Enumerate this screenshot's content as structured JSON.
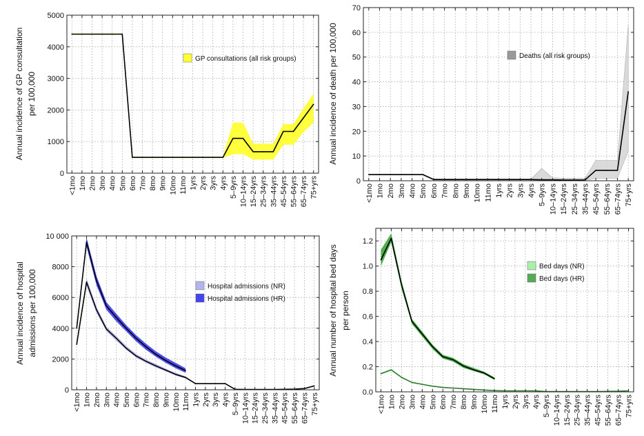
{
  "chart_data": [
    {
      "type": "line",
      "id": "gp",
      "ylabel_lines": [
        "Annual incidence of GP consultation",
        "per 100,000"
      ],
      "ylim": [
        0,
        5000
      ],
      "yticks": [
        0,
        1000,
        2000,
        3000,
        4000,
        5000
      ],
      "ytick_labels": [
        "0",
        "1000",
        "2000",
        "3000",
        "4000",
        "5000"
      ],
      "categories": [
        "<1mo",
        "1mo",
        "2mo",
        "3mo",
        "4mo",
        "5mo",
        "6mo",
        "7mo",
        "8mo",
        "9mo",
        "10mo",
        "11mo",
        "1yrs",
        "2yrs",
        "3yrs",
        "4yrs",
        "5–9yrs",
        "10–14yrs",
        "15–24yrs",
        "25–34yrs",
        "35–44yrs",
        "45–54yrs",
        "55–64yrs",
        "65–74yrs",
        "75+yrs"
      ],
      "grid": true,
      "legend_position": "top-right",
      "series": [
        {
          "name": "GP consultations (all risk groups)",
          "fill": "#ffff33",
          "line": "#000000",
          "mean": [
            4400,
            4400,
            4400,
            4400,
            4400,
            4400,
            500,
            500,
            500,
            500,
            500,
            500,
            500,
            500,
            500,
            500,
            1100,
            1100,
            680,
            680,
            680,
            1320,
            1320,
            1750,
            2180
          ],
          "lower": [
            4380,
            4380,
            4380,
            4380,
            4380,
            4380,
            480,
            480,
            480,
            480,
            480,
            480,
            480,
            480,
            480,
            480,
            600,
            600,
            430,
            430,
            430,
            900,
            900,
            1300,
            1600
          ],
          "upper": [
            4420,
            4420,
            4420,
            4420,
            4420,
            4420,
            520,
            520,
            520,
            520,
            520,
            520,
            520,
            520,
            520,
            520,
            1600,
            1600,
            930,
            930,
            930,
            1550,
            1550,
            2050,
            2520
          ]
        }
      ]
    },
    {
      "type": "line",
      "id": "deaths",
      "ylabel_lines": [
        "Annual incidence of death per 100,000"
      ],
      "ylim": [
        0,
        70
      ],
      "yticks": [
        0,
        10,
        20,
        30,
        40,
        50,
        60,
        70
      ],
      "ytick_labels": [
        "0",
        "10",
        "20",
        "30",
        "40",
        "50",
        "60",
        "70"
      ],
      "categories": [
        "<1mo",
        "1mo",
        "2mo",
        "3mo",
        "4mo",
        "5mo",
        "6mo",
        "7mo",
        "8mo",
        "9mo",
        "10mo",
        "11mo",
        "1yrs",
        "2yrs",
        "3yrs",
        "4yrs",
        "5–9yrs",
        "10–14yrs",
        "15–24yrs",
        "25–34yrs",
        "35–44yrs",
        "45–54yrs",
        "55–64yrs",
        "65–74yrs",
        "75+yrs"
      ],
      "grid": true,
      "legend_position": "top-right",
      "series": [
        {
          "name": "Deaths (all risk groups)",
          "fill": "#d9d9d9",
          "line": "#000000",
          "legend_swatch": "#999999",
          "mean": [
            2.5,
            2.5,
            2.5,
            2.5,
            2.5,
            2.5,
            0.5,
            0.5,
            0.5,
            0.5,
            0.5,
            0.5,
            0.5,
            0.5,
            0.5,
            0.5,
            0.4,
            0.4,
            0.3,
            0.3,
            0.3,
            4.2,
            4.2,
            4.2,
            36
          ],
          "lower": [
            2.3,
            2.3,
            2.3,
            2.3,
            2.3,
            2.3,
            0.3,
            0.3,
            0.3,
            0.3,
            0.3,
            0.3,
            0.3,
            0.3,
            0.3,
            0.3,
            0.1,
            0.1,
            0.1,
            0.1,
            0.1,
            1.0,
            1.0,
            1.0,
            12
          ],
          "upper": [
            2.7,
            2.7,
            2.7,
            2.7,
            2.7,
            2.7,
            0.7,
            0.7,
            0.7,
            0.7,
            0.7,
            0.7,
            0.7,
            0.7,
            0.7,
            0.7,
            5.0,
            1.2,
            1.0,
            1.0,
            1.0,
            8.2,
            8.2,
            8.2,
            63
          ]
        }
      ]
    },
    {
      "type": "line",
      "id": "hosp",
      "ylabel_lines": [
        "Annual incidence of hospital",
        "admissions per 100,000"
      ],
      "ylim": [
        0,
        10000
      ],
      "yticks": [
        0,
        2000,
        4000,
        6000,
        8000,
        10000
      ],
      "ytick_labels": [
        "0",
        "2000",
        "4000",
        "6000",
        "8000",
        "10 000"
      ],
      "categories": [
        "<1mo",
        "1mo",
        "2mo",
        "3mo",
        "4mo",
        "5mo",
        "6mo",
        "7mo",
        "8mo",
        "9mo",
        "10mo",
        "11mo",
        "1yrs",
        "2yrs",
        "3yrs",
        "4yrs",
        "5–9yrs",
        "10–14yrs",
        "15–24yrs",
        "25–34yrs",
        "35–44yrs",
        "45–54yrs",
        "55–64yrs",
        "65–74yrs",
        "75+yrs"
      ],
      "grid": true,
      "legend_position": "center-right",
      "series": [
        {
          "name": "Hospital admissions (NR)",
          "fill": "#b3b3ee",
          "line": "#000000",
          "mean": [
            2950,
            7000,
            5200,
            3950,
            3350,
            2700,
            2200,
            1850,
            1550,
            1280,
            1000,
            800,
            400,
            400,
            400,
            400,
            30,
            20,
            20,
            20,
            20,
            30,
            40,
            80,
            250
          ],
          "lower": [
            2900,
            6750,
            5000,
            3800,
            3200,
            2600,
            2100,
            1750,
            1450,
            1200,
            920,
            740,
            380,
            380,
            380,
            380,
            20,
            15,
            15,
            15,
            15,
            20,
            30,
            60,
            200
          ],
          "upper": [
            3000,
            7250,
            5400,
            4100,
            3500,
            2850,
            2330,
            1970,
            1670,
            1380,
            1100,
            880,
            420,
            420,
            420,
            420,
            40,
            25,
            25,
            25,
            25,
            40,
            50,
            100,
            300
          ]
        },
        {
          "name": "Hospital admissions (HR)",
          "fill": "#4444ee",
          "line": "#000000",
          "mean": [
            4000,
            9600,
            7100,
            5450,
            4700,
            4000,
            3350,
            2800,
            2300,
            1900,
            1550,
            1250
          ],
          "lower": [
            3900,
            9300,
            6800,
            5200,
            4450,
            3800,
            3150,
            2600,
            2150,
            1750,
            1400,
            1100
          ],
          "upper": [
            4150,
            9900,
            7400,
            5700,
            4950,
            4200,
            3550,
            3000,
            2500,
            2100,
            1750,
            1400
          ]
        }
      ]
    },
    {
      "type": "line",
      "id": "bed",
      "ylabel_lines": [
        "Annual number of hospital bed days",
        "per person"
      ],
      "ylim": [
        0,
        1.3
      ],
      "yticks": [
        0,
        0.2,
        0.4,
        0.6,
        0.8,
        1.0,
        1.2
      ],
      "ytick_labels": [
        "0.0",
        "0.2",
        "0.4",
        "0.6",
        "0.8",
        "1.0",
        "1.2"
      ],
      "categories": [
        "<1mo",
        "1mo",
        "2mo",
        "3mo",
        "4mo",
        "5mo",
        "6mo",
        "7mo",
        "8mo",
        "9mo",
        "10mo",
        "11mo",
        "1yrs",
        "2yrs",
        "3yrs",
        "4yrs",
        "5–9yrs",
        "10–14yrs",
        "15–24yrs",
        "25–34yrs",
        "35–44yrs",
        "45–54yrs",
        "55–64yrs",
        "65–74yrs",
        "75+yrs"
      ],
      "grid": true,
      "legend_position": "center-right",
      "series": [
        {
          "name": "Bed days (NR)",
          "fill": "#aaeeaa",
          "line": "#2a7a2a",
          "legend_swatch": "#aaeeaa",
          "mean": [
            0.145,
            0.175,
            0.115,
            0.075,
            0.06,
            0.045,
            0.035,
            0.03,
            0.025,
            0.02,
            0.015,
            0.01,
            0.008,
            0.008,
            0.008,
            0.008,
            0.002,
            0.002,
            0.002,
            0.002,
            0.002,
            0.003,
            0.004,
            0.005,
            0.008
          ],
          "lower": [
            0.14,
            0.168,
            0.11,
            0.072,
            0.057,
            0.042,
            0.033,
            0.028,
            0.023,
            0.018,
            0.013,
            0.009,
            0.007,
            0.007,
            0.007,
            0.007,
            0.001,
            0.001,
            0.001,
            0.001,
            0.001,
            0.002,
            0.003,
            0.004,
            0.006
          ],
          "upper": [
            0.15,
            0.182,
            0.12,
            0.078,
            0.063,
            0.048,
            0.037,
            0.032,
            0.027,
            0.022,
            0.017,
            0.011,
            0.009,
            0.009,
            0.009,
            0.009,
            0.003,
            0.003,
            0.003,
            0.003,
            0.003,
            0.004,
            0.005,
            0.006,
            0.01
          ]
        },
        {
          "name": "Bed days (HR)",
          "fill": "#44aa44",
          "line": "#000000",
          "legend_swatch": "#55aa55",
          "mean": [
            1.05,
            1.22,
            0.85,
            0.56,
            0.46,
            0.36,
            0.28,
            0.255,
            0.205,
            0.175,
            0.15,
            0.105
          ],
          "lower": [
            1.0,
            1.19,
            0.82,
            0.54,
            0.44,
            0.34,
            0.265,
            0.24,
            0.19,
            0.165,
            0.14,
            0.095
          ],
          "upper": [
            1.13,
            1.26,
            0.88,
            0.58,
            0.48,
            0.375,
            0.295,
            0.27,
            0.22,
            0.19,
            0.16,
            0.115
          ]
        }
      ]
    }
  ]
}
